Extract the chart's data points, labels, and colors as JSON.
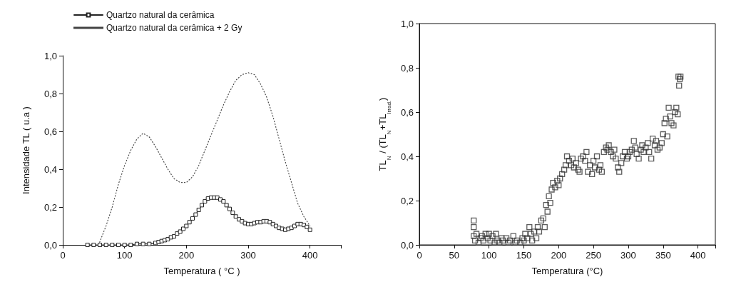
{
  "chart_data": [
    {
      "type": "line",
      "xlabel": "Temperatura ( °C )",
      "ylabel": "Intensidade TL ( u.a )",
      "xlim": [
        0,
        450
      ],
      "xticks": [
        0,
        100,
        200,
        300,
        400
      ],
      "ylim": [
        0,
        1
      ],
      "yticks": [
        {
          "value": 0,
          "label": "0,0"
        },
        {
          "value": 0.2,
          "label": "0,2"
        },
        {
          "value": 0.4,
          "label": "0,4"
        },
        {
          "value": 0.6,
          "label": "0,6"
        },
        {
          "value": 0.8,
          "label": "0,8"
        },
        {
          "value": 1,
          "label": "1,0"
        }
      ],
      "grid": false,
      "legend": "top left",
      "series": [
        {
          "name": "Quartzo natural da cerâmica",
          "color": "#222222",
          "marker": "square",
          "line_style": "solid",
          "x": [
            40,
            50,
            60,
            70,
            80,
            90,
            100,
            110,
            120,
            130,
            140,
            150,
            155,
            160,
            165,
            170,
            175,
            180,
            185,
            190,
            195,
            200,
            205,
            210,
            215,
            220,
            225,
            230,
            235,
            240,
            245,
            250,
            255,
            260,
            265,
            270,
            275,
            280,
            285,
            290,
            295,
            300,
            305,
            310,
            315,
            320,
            325,
            330,
            335,
            340,
            345,
            350,
            355,
            360,
            365,
            370,
            375,
            380,
            385,
            390,
            395,
            400
          ],
          "values": [
            0,
            0,
            0,
            0,
            0,
            0,
            0,
            0,
            0.005,
            0.005,
            0.005,
            0.01,
            0.015,
            0.02,
            0.025,
            0.03,
            0.04,
            0.045,
            0.06,
            0.07,
            0.085,
            0.1,
            0.12,
            0.14,
            0.16,
            0.185,
            0.21,
            0.23,
            0.245,
            0.25,
            0.25,
            0.25,
            0.24,
            0.23,
            0.21,
            0.19,
            0.17,
            0.15,
            0.135,
            0.125,
            0.115,
            0.11,
            0.11,
            0.115,
            0.12,
            0.12,
            0.125,
            0.125,
            0.12,
            0.11,
            0.1,
            0.09,
            0.085,
            0.08,
            0.085,
            0.09,
            0.1,
            0.11,
            0.11,
            0.105,
            0.095,
            0.08
          ]
        },
        {
          "name": "Quartzo natural da cerâmica + 2 Gy",
          "color": "#444444",
          "marker": "none",
          "line_style": "dotted",
          "x": [
            58,
            70,
            80,
            90,
            100,
            110,
            120,
            130,
            140,
            150,
            160,
            170,
            180,
            190,
            200,
            210,
            220,
            230,
            240,
            250,
            260,
            270,
            280,
            290,
            300,
            310,
            320,
            330,
            340,
            350,
            360,
            370,
            380,
            390,
            400
          ],
          "values": [
            0,
            0.1,
            0.2,
            0.32,
            0.42,
            0.5,
            0.56,
            0.59,
            0.57,
            0.52,
            0.46,
            0.4,
            0.35,
            0.33,
            0.33,
            0.36,
            0.42,
            0.5,
            0.58,
            0.66,
            0.74,
            0.81,
            0.87,
            0.9,
            0.91,
            0.9,
            0.85,
            0.78,
            0.68,
            0.56,
            0.44,
            0.33,
            0.22,
            0.15,
            0.1
          ]
        }
      ]
    },
    {
      "type": "scatter",
      "xlabel": "Temperatura (°C)",
      "ylabel": "TL$_{N}$ / (TL$_{N}$+TL$_{Irrad.}$)",
      "xlim": [
        0,
        425
      ],
      "xticks": [
        0,
        50,
        100,
        150,
        200,
        250,
        300,
        350,
        400
      ],
      "ylim": [
        0,
        1
      ],
      "yticks": [
        {
          "value": 0,
          "label": "0,0"
        },
        {
          "value": 0.2,
          "label": "0,2"
        },
        {
          "value": 0.4,
          "label": "0,4"
        },
        {
          "value": 0.6,
          "label": "0,6"
        },
        {
          "value": 0.8,
          "label": "0,8"
        },
        {
          "value": 1,
          "label": "1,0"
        }
      ],
      "grid": false,
      "legend": false,
      "marker": "square",
      "series": [
        {
          "color": "#333333",
          "x": [
            78,
            78,
            78,
            80,
            82,
            85,
            88,
            90,
            92,
            95,
            98,
            100,
            102,
            105,
            108,
            110,
            112,
            115,
            118,
            120,
            125,
            128,
            130,
            135,
            138,
            140,
            145,
            148,
            150,
            152,
            155,
            158,
            160,
            162,
            165,
            168,
            170,
            172,
            175,
            178,
            180,
            182,
            184,
            186,
            188,
            190,
            192,
            195,
            198,
            200,
            202,
            205,
            208,
            210,
            212,
            215,
            218,
            220,
            222,
            225,
            228,
            230,
            232,
            235,
            238,
            240,
            242,
            245,
            248,
            250,
            252,
            255,
            258,
            260,
            262,
            265,
            268,
            270,
            272,
            275,
            278,
            280,
            282,
            285,
            287,
            290,
            292,
            295,
            298,
            300,
            302,
            305,
            308,
            310,
            312,
            315,
            318,
            320,
            322,
            325,
            328,
            330,
            333,
            335,
            338,
            340,
            342,
            345,
            348,
            350,
            352,
            354,
            356,
            358,
            360,
            362,
            365,
            367,
            369,
            371,
            372,
            373,
            374,
            375
          ],
          "values": [
            0.11,
            0.08,
            0.04,
            0.02,
            0.05,
            0.01,
            0.03,
            0.04,
            0.02,
            0.05,
            0.03,
            0.05,
            0.02,
            0.04,
            0.01,
            0.05,
            0.02,
            0.01,
            0.03,
            0.02,
            0.03,
            0.01,
            0.02,
            0.04,
            0.01,
            0.02,
            0.01,
            0.03,
            0.02,
            0.05,
            0.03,
            0.08,
            0.05,
            0.02,
            0.06,
            0.03,
            0.08,
            0.06,
            0.11,
            0.12,
            0.08,
            0.18,
            0.15,
            0.22,
            0.19,
            0.25,
            0.28,
            0.26,
            0.29,
            0.27,
            0.3,
            0.32,
            0.34,
            0.36,
            0.4,
            0.38,
            0.36,
            0.39,
            0.35,
            0.37,
            0.34,
            0.33,
            0.39,
            0.4,
            0.38,
            0.42,
            0.33,
            0.36,
            0.32,
            0.38,
            0.35,
            0.4,
            0.34,
            0.36,
            0.33,
            0.42,
            0.44,
            0.43,
            0.45,
            0.42,
            0.4,
            0.43,
            0.39,
            0.35,
            0.33,
            0.37,
            0.4,
            0.42,
            0.39,
            0.4,
            0.42,
            0.43,
            0.47,
            0.44,
            0.41,
            0.39,
            0.43,
            0.45,
            0.42,
            0.44,
            0.46,
            0.42,
            0.39,
            0.48,
            0.45,
            0.47,
            0.43,
            0.44,
            0.46,
            0.5,
            0.55,
            0.57,
            0.49,
            0.62,
            0.58,
            0.55,
            0.54,
            0.6,
            0.62,
            0.59,
            0.76,
            0.72,
            0.75,
            0.76
          ]
        }
      ]
    }
  ]
}
